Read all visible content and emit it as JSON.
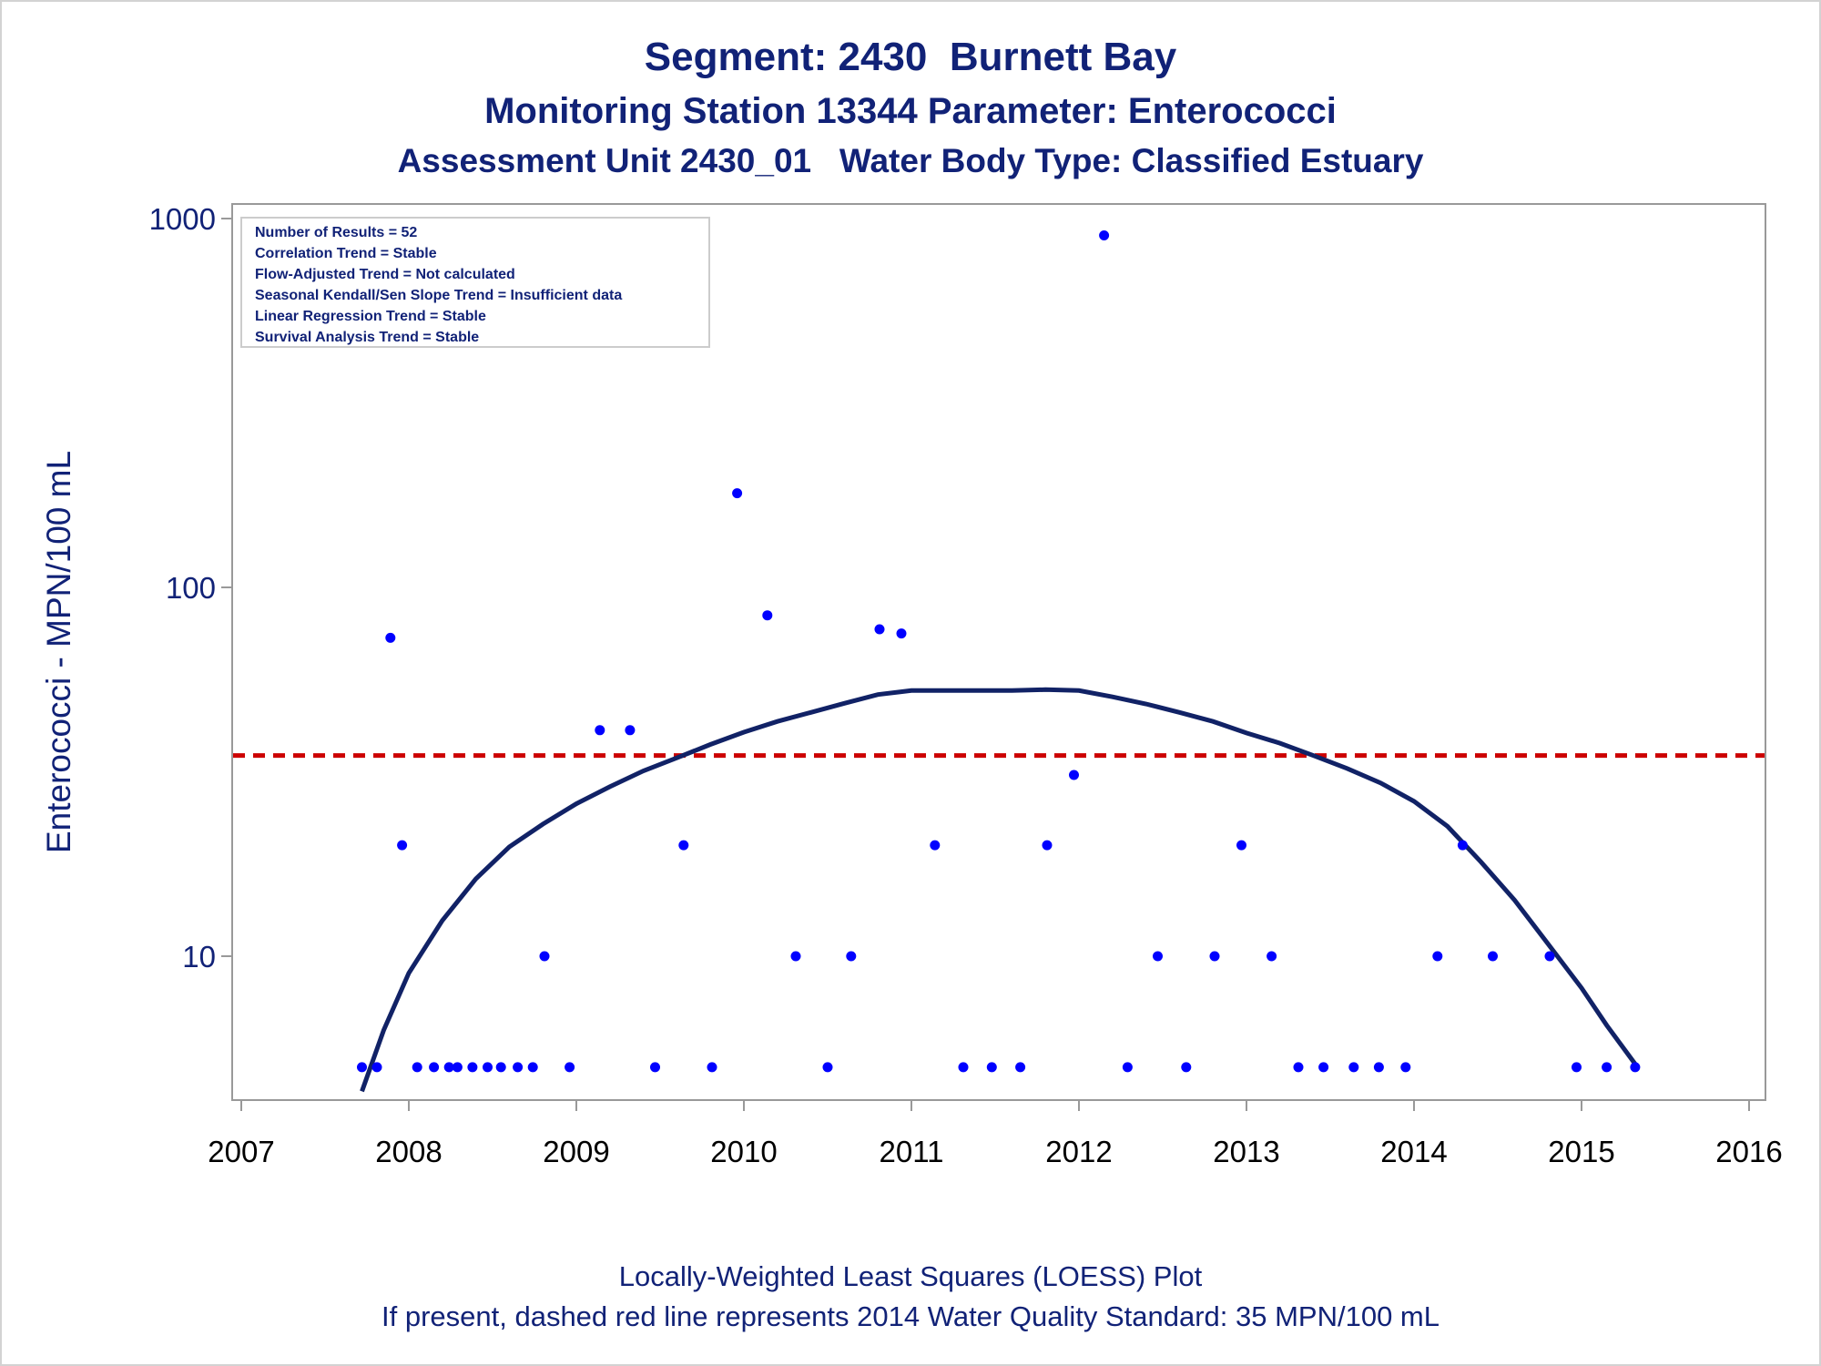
{
  "titles": {
    "line1": "Segment: 2430  Burnett Bay",
    "line2": "Monitoring Station 13344 Parameter: Enterococci",
    "line3": "Assessment Unit 2430_01   Water Body Type: Classified Estuary"
  },
  "footnotes": {
    "line1": "Locally-Weighted Least Squares (LOESS) Plot",
    "line2": "If present, dashed red line represents 2014 Water Quality Standard: 35 MPN/100 mL"
  },
  "stats_box": [
    "Number of Results = 52",
    "Correlation Trend = Stable",
    "Flow-Adjusted Trend = Not calculated",
    "Seasonal Kendall/Sen Slope Trend = Insufficient data",
    "Linear Regression Trend = Stable",
    "Survival Analysis Trend = Stable"
  ],
  "colors": {
    "points": "#0000ff",
    "loess": "#112266",
    "standard_line": "#cc0000",
    "text": "#112277",
    "frame": "#999999"
  },
  "chart_data": {
    "type": "scatter",
    "ylabel": "Enterococci - MPN/100 mL",
    "xlabel": "",
    "x_ticks": [
      2007,
      2008,
      2009,
      2010,
      2011,
      2012,
      2013,
      2014,
      2015,
      2016
    ],
    "y_ticks": [
      10,
      100,
      1000
    ],
    "y_scale": "log",
    "xlim": [
      2007,
      2016
    ],
    "ylim": [
      4,
      1000
    ],
    "grid": false,
    "standard": 35,
    "points": [
      [
        2007.72,
        5
      ],
      [
        2007.81,
        5
      ],
      [
        2007.89,
        73
      ],
      [
        2007.96,
        20
      ],
      [
        2008.05,
        5
      ],
      [
        2008.15,
        5
      ],
      [
        2008.24,
        5
      ],
      [
        2008.29,
        5
      ],
      [
        2008.38,
        5
      ],
      [
        2008.47,
        5
      ],
      [
        2008.55,
        5
      ],
      [
        2008.65,
        5
      ],
      [
        2008.74,
        5
      ],
      [
        2008.81,
        10
      ],
      [
        2008.96,
        5
      ],
      [
        2009.14,
        41
      ],
      [
        2009.32,
        41
      ],
      [
        2009.47,
        5
      ],
      [
        2009.64,
        20
      ],
      [
        2009.81,
        5
      ],
      [
        2009.96,
        180
      ],
      [
        2010.14,
        84
      ],
      [
        2010.31,
        10
      ],
      [
        2010.5,
        5
      ],
      [
        2010.64,
        10
      ],
      [
        2010.81,
        77
      ],
      [
        2010.94,
        75
      ],
      [
        2011.14,
        20
      ],
      [
        2011.31,
        5
      ],
      [
        2011.48,
        5
      ],
      [
        2011.65,
        5
      ],
      [
        2011.81,
        20
      ],
      [
        2011.97,
        31
      ],
      [
        2012.15,
        900
      ],
      [
        2012.29,
        5
      ],
      [
        2012.47,
        10
      ],
      [
        2012.64,
        5
      ],
      [
        2012.81,
        10
      ],
      [
        2012.97,
        20
      ],
      [
        2013.15,
        10
      ],
      [
        2013.31,
        5
      ],
      [
        2013.46,
        5
      ],
      [
        2013.64,
        5
      ],
      [
        2013.79,
        5
      ],
      [
        2013.95,
        5
      ],
      [
        2014.14,
        10
      ],
      [
        2014.29,
        20
      ],
      [
        2014.47,
        10
      ],
      [
        2014.81,
        10
      ],
      [
        2014.97,
        5
      ],
      [
        2015.15,
        5
      ],
      [
        2015.32,
        5
      ]
    ],
    "loess": [
      [
        2007.72,
        4.3
      ],
      [
        2007.85,
        6.3
      ],
      [
        2008.0,
        9.0
      ],
      [
        2008.2,
        12.5
      ],
      [
        2008.4,
        16.2
      ],
      [
        2008.6,
        19.8
      ],
      [
        2008.8,
        22.8
      ],
      [
        2009.0,
        25.9
      ],
      [
        2009.2,
        28.8
      ],
      [
        2009.4,
        31.8
      ],
      [
        2009.6,
        34.5
      ],
      [
        2009.8,
        37.5
      ],
      [
        2010.0,
        40.5
      ],
      [
        2010.2,
        43.3
      ],
      [
        2010.4,
        45.8
      ],
      [
        2010.6,
        48.5
      ],
      [
        2010.8,
        51.2
      ],
      [
        2011.0,
        52.5
      ],
      [
        2011.2,
        52.5
      ],
      [
        2011.4,
        52.5
      ],
      [
        2011.6,
        52.5
      ],
      [
        2011.8,
        52.8
      ],
      [
        2012.0,
        52.5
      ],
      [
        2012.2,
        50.5
      ],
      [
        2012.4,
        48.3
      ],
      [
        2012.6,
        45.8
      ],
      [
        2012.8,
        43.3
      ],
      [
        2013.0,
        40.3
      ],
      [
        2013.2,
        37.8
      ],
      [
        2013.4,
        35.0
      ],
      [
        2013.6,
        32.3
      ],
      [
        2013.8,
        29.5
      ],
      [
        2014.0,
        26.3
      ],
      [
        2014.2,
        22.5
      ],
      [
        2014.4,
        18.0
      ],
      [
        2014.6,
        14.2
      ],
      [
        2014.8,
        10.8
      ],
      [
        2015.0,
        8.2
      ],
      [
        2015.15,
        6.5
      ],
      [
        2015.32,
        5.1
      ]
    ]
  }
}
